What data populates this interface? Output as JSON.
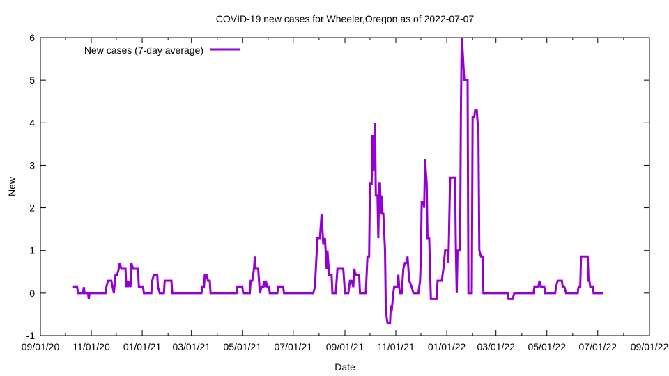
{
  "chart_data": {
    "type": "line",
    "title": "COVID-19 new cases for Wheeler,Oregon as of 2022-07-07",
    "xlabel": "Date",
    "ylabel": "New",
    "xlim": [
      "2020-09-01",
      "2022-09-01"
    ],
    "ylim": [
      -1,
      6
    ],
    "x_ticks": [
      "2020-09-01",
      "2020-11-01",
      "2021-01-01",
      "2021-03-01",
      "2021-05-01",
      "2021-07-01",
      "2021-09-01",
      "2021-11-01",
      "2022-01-01",
      "2022-03-01",
      "2022-05-01",
      "2022-07-01",
      "2022-09-01"
    ],
    "x_tick_labels": [
      "09/01/20",
      "11/01/20",
      "01/01/21",
      "03/01/21",
      "05/01/21",
      "07/01/21",
      "09/01/21",
      "11/01/21",
      "01/01/22",
      "03/01/22",
      "05/01/22",
      "07/01/22",
      "09/01/22"
    ],
    "y_ticks": [
      -1,
      0,
      1,
      2,
      3,
      4,
      5,
      6
    ],
    "y_tick_labels": [
      "-1",
      "0",
      "1",
      "2",
      "3",
      "4",
      "5",
      "6"
    ],
    "grid": false,
    "legend_position": "top-left",
    "series": [
      {
        "name": "New cases (7-day average)",
        "color": "#9400d3",
        "points": [
          [
            "2020-10-10",
            0.14
          ],
          [
            "2020-10-15",
            0.14
          ],
          [
            "2020-10-16",
            0
          ],
          [
            "2020-10-22",
            0
          ],
          [
            "2020-10-23",
            0.14
          ],
          [
            "2020-10-24",
            0
          ],
          [
            "2020-10-28",
            0
          ],
          [
            "2020-10-29",
            -0.14
          ],
          [
            "2020-10-30",
            0
          ],
          [
            "2020-11-18",
            0
          ],
          [
            "2020-11-19",
            0.14
          ],
          [
            "2020-11-21",
            0.29
          ],
          [
            "2020-11-25",
            0.29
          ],
          [
            "2020-11-28",
            0
          ],
          [
            "2020-11-30",
            0.43
          ],
          [
            "2020-12-02",
            0.43
          ],
          [
            "2020-12-04",
            0.57
          ],
          [
            "2020-12-05",
            0.71
          ],
          [
            "2020-12-07",
            0.57
          ],
          [
            "2020-12-12",
            0.57
          ],
          [
            "2020-12-13",
            0.14
          ],
          [
            "2020-12-14",
            0.29
          ],
          [
            "2020-12-15",
            0.14
          ],
          [
            "2020-12-16",
            0.29
          ],
          [
            "2020-12-18",
            0.14
          ],
          [
            "2020-12-19",
            0.71
          ],
          [
            "2020-12-21",
            0.57
          ],
          [
            "2020-12-27",
            0.57
          ],
          [
            "2020-12-28",
            0.14
          ],
          [
            "2021-01-02",
            0.14
          ],
          [
            "2021-01-03",
            0
          ],
          [
            "2021-01-12",
            0
          ],
          [
            "2021-01-13",
            0.29
          ],
          [
            "2021-01-15",
            0.43
          ],
          [
            "2021-01-19",
            0.43
          ],
          [
            "2021-01-20",
            0.14
          ],
          [
            "2021-01-22",
            0
          ],
          [
            "2021-01-27",
            0
          ],
          [
            "2021-01-28",
            0.29
          ],
          [
            "2021-02-05",
            0.29
          ],
          [
            "2021-02-06",
            0
          ],
          [
            "2021-03-13",
            0
          ],
          [
            "2021-03-14",
            0.14
          ],
          [
            "2021-03-16",
            0.14
          ],
          [
            "2021-03-17",
            0.43
          ],
          [
            "2021-03-19",
            0.43
          ],
          [
            "2021-03-21",
            0.29
          ],
          [
            "2021-03-23",
            0.29
          ],
          [
            "2021-03-24",
            0
          ],
          [
            "2021-04-24",
            0
          ],
          [
            "2021-04-25",
            0.14
          ],
          [
            "2021-05-01",
            0.14
          ],
          [
            "2021-05-02",
            0
          ],
          [
            "2021-05-10",
            0
          ],
          [
            "2021-05-11",
            0.29
          ],
          [
            "2021-05-13",
            0.29
          ],
          [
            "2021-05-15",
            0.57
          ],
          [
            "2021-05-16",
            0.86
          ],
          [
            "2021-05-17",
            0.57
          ],
          [
            "2021-05-20",
            0.57
          ],
          [
            "2021-05-22",
            0
          ],
          [
            "2021-05-24",
            0.14
          ],
          [
            "2021-05-26",
            0.14
          ],
          [
            "2021-05-27",
            0.29
          ],
          [
            "2021-05-28",
            0.14
          ],
          [
            "2021-05-29",
            0.29
          ],
          [
            "2021-05-31",
            0.14
          ],
          [
            "2021-06-02",
            0.14
          ],
          [
            "2021-06-03",
            0
          ],
          [
            "2021-06-12",
            0
          ],
          [
            "2021-06-13",
            0.14
          ],
          [
            "2021-06-19",
            0.14
          ],
          [
            "2021-06-20",
            0
          ],
          [
            "2021-07-25",
            0
          ],
          [
            "2021-07-27",
            0.14
          ],
          [
            "2021-07-30",
            1.29
          ],
          [
            "2021-08-02",
            1.29
          ],
          [
            "2021-08-04",
            1.86
          ],
          [
            "2021-08-06",
            1.14
          ],
          [
            "2021-08-08",
            1.29
          ],
          [
            "2021-08-10",
            0.57
          ],
          [
            "2021-08-11",
            1
          ],
          [
            "2021-08-13",
            0.43
          ],
          [
            "2021-08-16",
            0.43
          ],
          [
            "2021-08-17",
            0
          ],
          [
            "2021-08-21",
            0
          ],
          [
            "2021-08-23",
            0.57
          ],
          [
            "2021-08-30",
            0.57
          ],
          [
            "2021-09-01",
            0
          ],
          [
            "2021-09-05",
            0
          ],
          [
            "2021-09-07",
            0.29
          ],
          [
            "2021-09-09",
            0.29
          ],
          [
            "2021-09-11",
            0.14
          ],
          [
            "2021-09-12",
            0.57
          ],
          [
            "2021-09-14",
            0.43
          ],
          [
            "2021-09-18",
            0.43
          ],
          [
            "2021-09-19",
            0
          ],
          [
            "2021-09-26",
            0
          ],
          [
            "2021-09-28",
            0.86
          ],
          [
            "2021-09-30",
            0.86
          ],
          [
            "2021-10-01",
            2.57
          ],
          [
            "2021-10-03",
            2.57
          ],
          [
            "2021-10-04",
            3.71
          ],
          [
            "2021-10-05",
            2.86
          ],
          [
            "2021-10-07",
            4
          ],
          [
            "2021-10-08",
            2.29
          ],
          [
            "2021-10-10",
            2.29
          ],
          [
            "2021-10-11",
            1.29
          ],
          [
            "2021-10-12",
            2.57
          ],
          [
            "2021-10-13",
            2.57
          ],
          [
            "2021-10-14",
            1.86
          ],
          [
            "2021-10-15",
            2.29
          ],
          [
            "2021-10-16",
            1.86
          ],
          [
            "2021-10-17",
            1.86
          ],
          [
            "2021-10-19",
            1
          ],
          [
            "2021-10-20",
            -0.43
          ],
          [
            "2021-10-22",
            -0.71
          ],
          [
            "2021-10-25",
            -0.71
          ],
          [
            "2021-10-26",
            -0.29
          ],
          [
            "2021-10-27",
            -0.43
          ],
          [
            "2021-10-29",
            0
          ],
          [
            "2021-10-30",
            0.14
          ],
          [
            "2021-11-03",
            0.14
          ],
          [
            "2021-11-04",
            0.43
          ],
          [
            "2021-11-05",
            0.14
          ],
          [
            "2021-11-06",
            0
          ],
          [
            "2021-11-08",
            0
          ],
          [
            "2021-11-10",
            0.57
          ],
          [
            "2021-11-12",
            0.71
          ],
          [
            "2021-11-14",
            0.71
          ],
          [
            "2021-11-15",
            0.86
          ],
          [
            "2021-11-17",
            0.29
          ],
          [
            "2021-11-20",
            0.14
          ],
          [
            "2021-11-22",
            0
          ],
          [
            "2021-11-28",
            0
          ],
          [
            "2021-11-30",
            0.29
          ],
          [
            "2021-12-01",
            0.86
          ],
          [
            "2021-12-02",
            2.14
          ],
          [
            "2021-12-04",
            2.14
          ],
          [
            "2021-12-05",
            2
          ],
          [
            "2021-12-06",
            3.14
          ],
          [
            "2021-12-08",
            2.57
          ],
          [
            "2021-12-09",
            1.29
          ],
          [
            "2021-12-11",
            1.29
          ],
          [
            "2021-12-13",
            -0.14
          ],
          [
            "2021-12-20",
            -0.14
          ],
          [
            "2021-12-21",
            0.29
          ],
          [
            "2021-12-26",
            0.29
          ],
          [
            "2021-12-28",
            0.57
          ],
          [
            "2021-12-30",
            1
          ],
          [
            "2022-01-02",
            1
          ],
          [
            "2022-01-03",
            0.71
          ],
          [
            "2022-01-05",
            2.71
          ],
          [
            "2022-01-11",
            2.71
          ],
          [
            "2022-01-12",
            1
          ],
          [
            "2022-01-13",
            0
          ],
          [
            "2022-01-14",
            1
          ],
          [
            "2022-01-17",
            1
          ],
          [
            "2022-01-18",
            4.29
          ],
          [
            "2022-01-19",
            6
          ],
          [
            "2022-01-20",
            5.71
          ],
          [
            "2022-01-22",
            5
          ],
          [
            "2022-01-26",
            5
          ],
          [
            "2022-01-27",
            0
          ],
          [
            "2022-01-31",
            0
          ],
          [
            "2022-02-01",
            4.14
          ],
          [
            "2022-02-03",
            4.14
          ],
          [
            "2022-02-04",
            4.29
          ],
          [
            "2022-02-06",
            4.29
          ],
          [
            "2022-02-08",
            3.71
          ],
          [
            "2022-02-09",
            1
          ],
          [
            "2022-02-11",
            0.86
          ],
          [
            "2022-02-13",
            0.86
          ],
          [
            "2022-02-14",
            0
          ],
          [
            "2022-03-15",
            0
          ],
          [
            "2022-03-16",
            -0.14
          ],
          [
            "2022-03-21",
            -0.14
          ],
          [
            "2022-03-23",
            0
          ],
          [
            "2022-04-15",
            0
          ],
          [
            "2022-04-16",
            0.14
          ],
          [
            "2022-04-21",
            0.14
          ],
          [
            "2022-04-22",
            0.29
          ],
          [
            "2022-04-24",
            0.14
          ],
          [
            "2022-04-28",
            0.14
          ],
          [
            "2022-04-29",
            0
          ],
          [
            "2022-05-11",
            0
          ],
          [
            "2022-05-12",
            0.14
          ],
          [
            "2022-05-14",
            0.29
          ],
          [
            "2022-05-19",
            0.29
          ],
          [
            "2022-05-20",
            0.14
          ],
          [
            "2022-05-22",
            0.14
          ],
          [
            "2022-05-24",
            0
          ],
          [
            "2022-06-07",
            0
          ],
          [
            "2022-06-08",
            0.14
          ],
          [
            "2022-06-10",
            0.14
          ],
          [
            "2022-06-11",
            0.86
          ],
          [
            "2022-06-19",
            0.86
          ],
          [
            "2022-06-20",
            0.29
          ],
          [
            "2022-06-21",
            0.29
          ],
          [
            "2022-06-22",
            0.14
          ],
          [
            "2022-06-25",
            0.14
          ],
          [
            "2022-06-26",
            0
          ],
          [
            "2022-07-07",
            0
          ]
        ]
      }
    ]
  }
}
